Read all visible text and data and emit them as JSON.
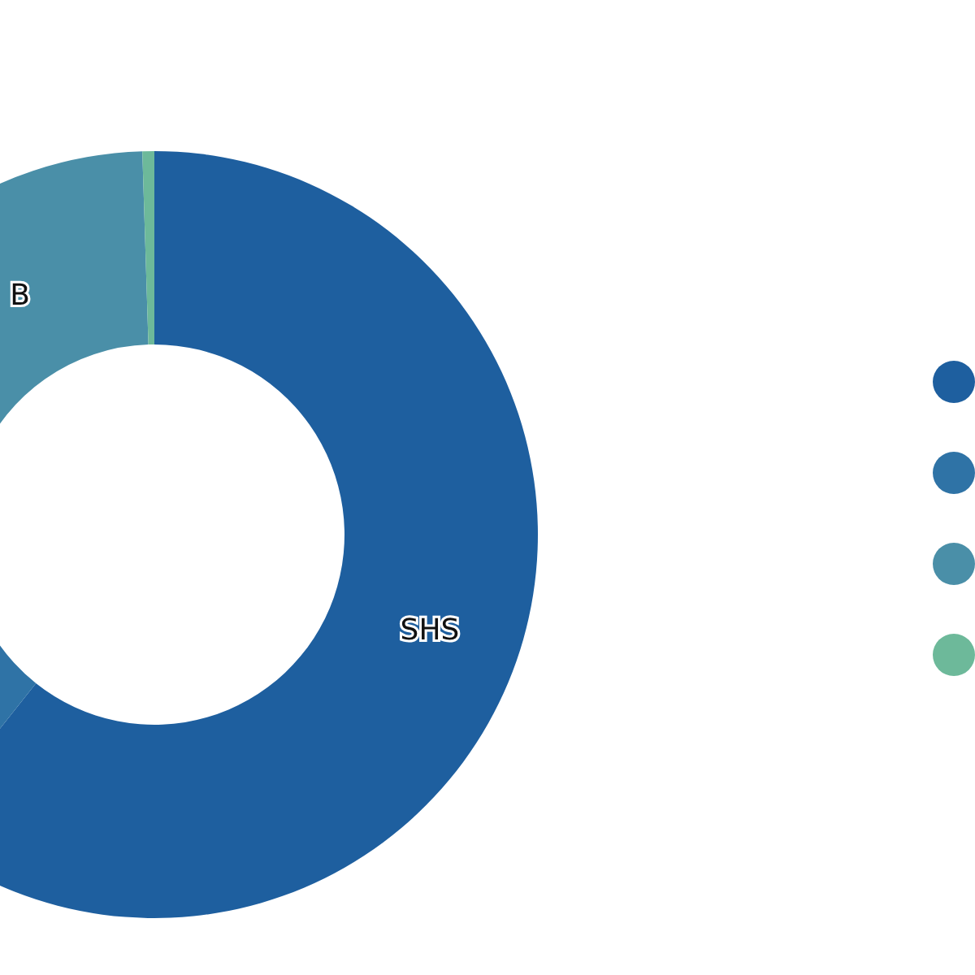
{
  "chart_data": {
    "type": "donut",
    "categories": [
      "SHS",
      null,
      "B",
      null
    ],
    "values": [
      60.7,
      20.3,
      18.5,
      0.5
    ],
    "colors": [
      "#1e5f9f",
      "#2f73a6",
      "#4a8fa8",
      "#6db99a"
    ]
  }
}
